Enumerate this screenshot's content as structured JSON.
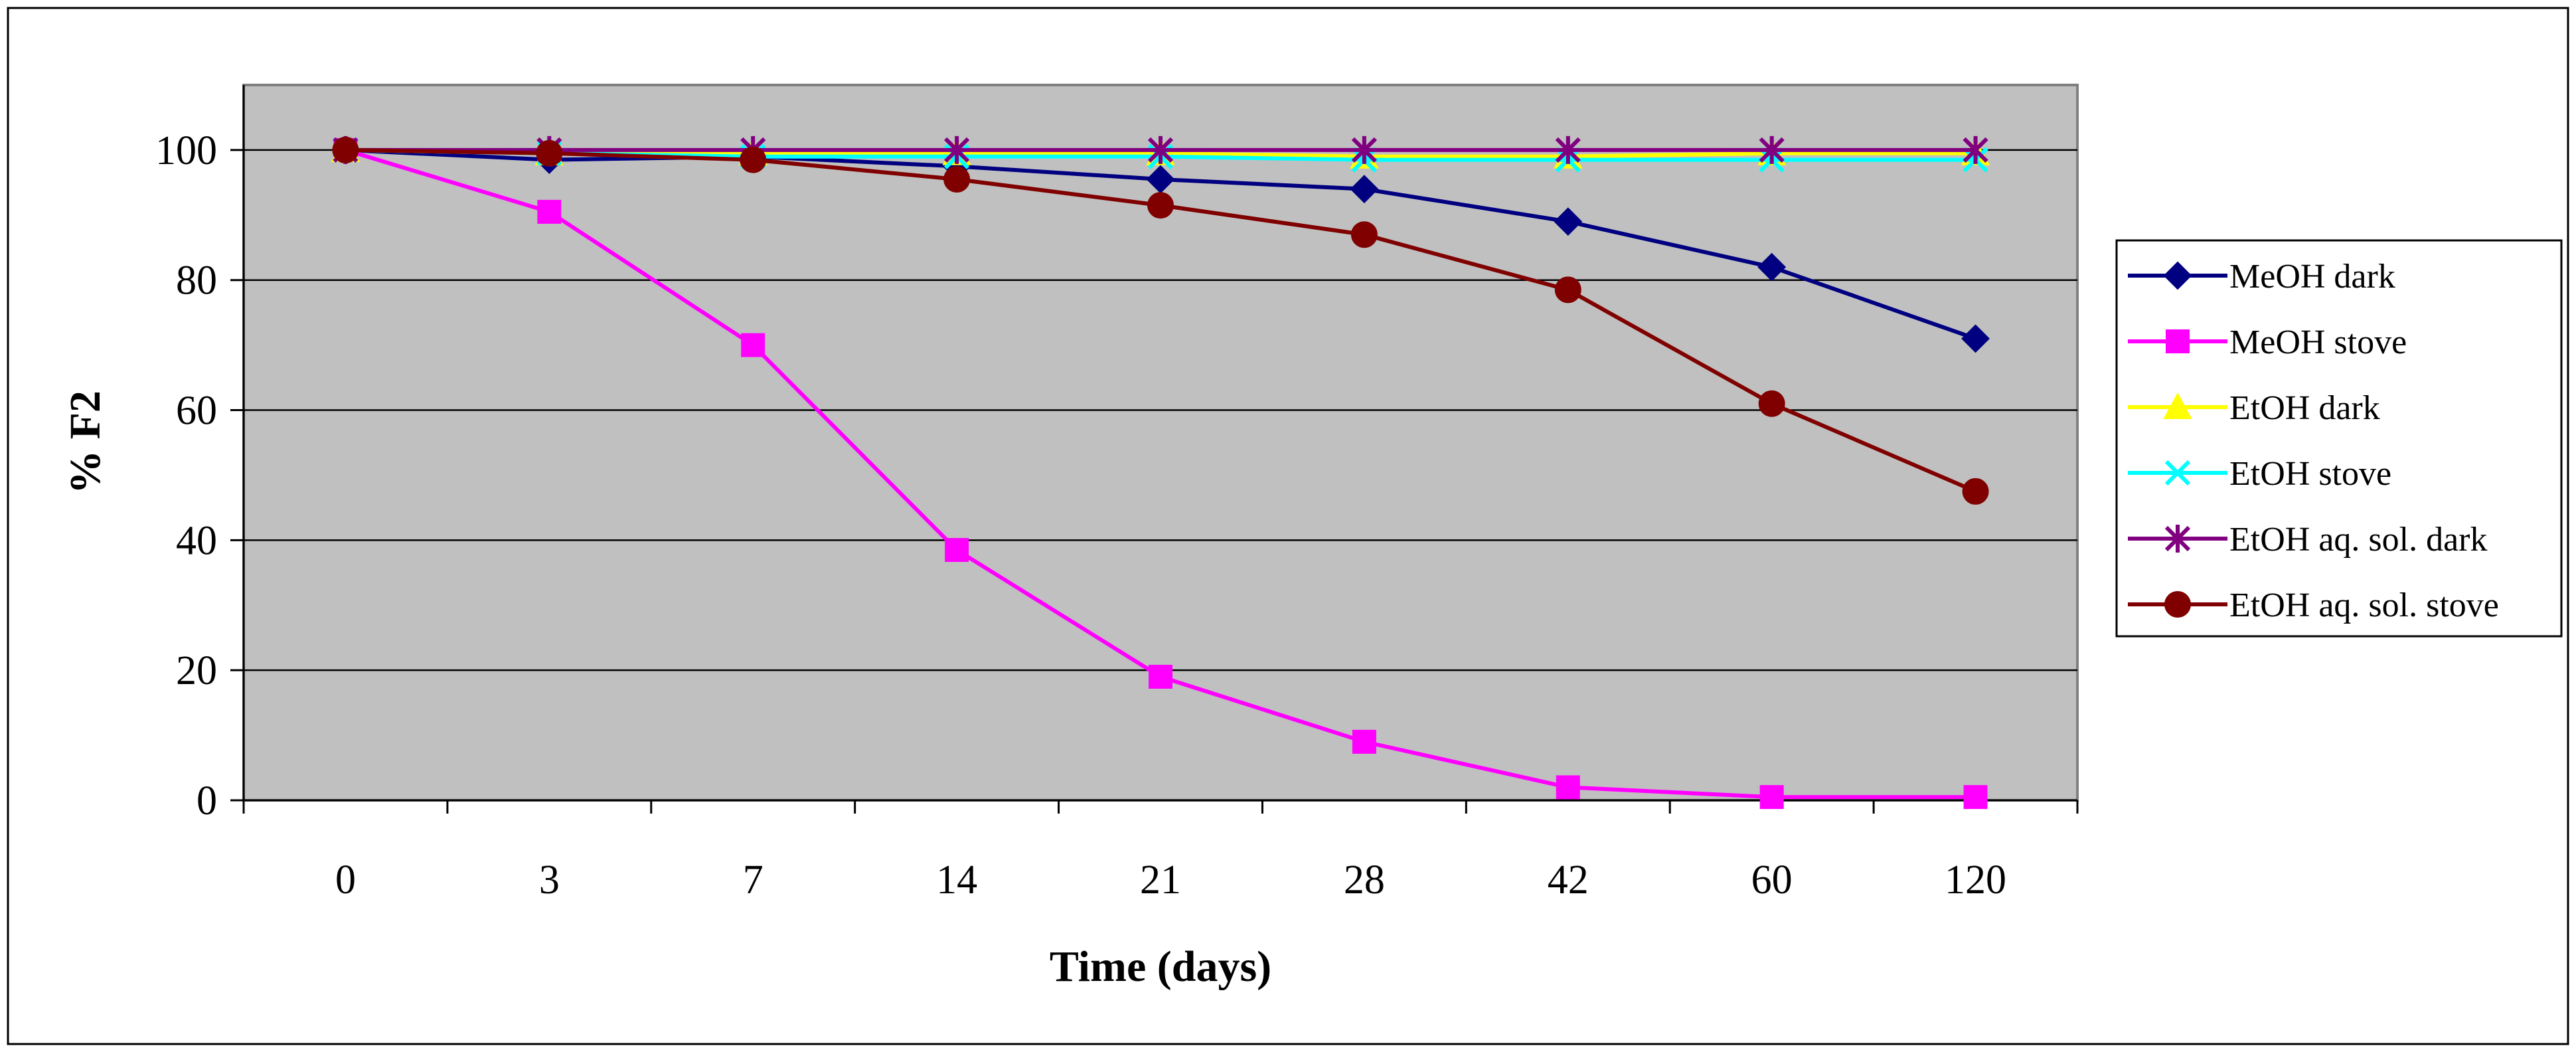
{
  "chart_data": {
    "type": "line",
    "title": "",
    "xlabel": "Time (days)",
    "ylabel": "% F2",
    "categories": [
      "0",
      "3",
      "7",
      "14",
      "21",
      "28",
      "42",
      "60",
      "120"
    ],
    "ylim": [
      0,
      110
    ],
    "yticks": [
      0,
      20,
      40,
      60,
      80,
      100
    ],
    "grid": true,
    "legend_position": "right",
    "plot_background": "#c0c0c0",
    "series": [
      {
        "name": "MeOH dark",
        "color": "#000080",
        "marker": "diamond",
        "values": [
          100,
          98.5,
          99,
          97.5,
          95.5,
          94,
          89,
          82,
          71
        ]
      },
      {
        "name": "MeOH stove",
        "color": "#ff00ff",
        "marker": "square",
        "values": [
          100,
          90.5,
          70,
          38.5,
          19,
          9,
          2,
          0.5,
          0.5
        ]
      },
      {
        "name": "EtOH dark",
        "color": "#ffff00",
        "marker": "triangle",
        "values": [
          100,
          99.5,
          99.5,
          99.5,
          99.5,
          99,
          99,
          99.5,
          99.5
        ]
      },
      {
        "name": "EtOH stove",
        "color": "#00ffff",
        "marker": "x",
        "values": [
          100,
          99.5,
          99,
          99,
          99,
          98.5,
          98.5,
          98.5,
          98.5
        ]
      },
      {
        "name": "EtOH aq. sol. dark",
        "color": "#800080",
        "marker": "star",
        "values": [
          100,
          100,
          100,
          100,
          100,
          100,
          100,
          100,
          100
        ]
      },
      {
        "name": "EtOH aq. sol. stove",
        "color": "#800000",
        "marker": "circle",
        "values": [
          100,
          99.5,
          98.5,
          95.5,
          91.5,
          87,
          78.5,
          61,
          47.5
        ]
      }
    ]
  }
}
